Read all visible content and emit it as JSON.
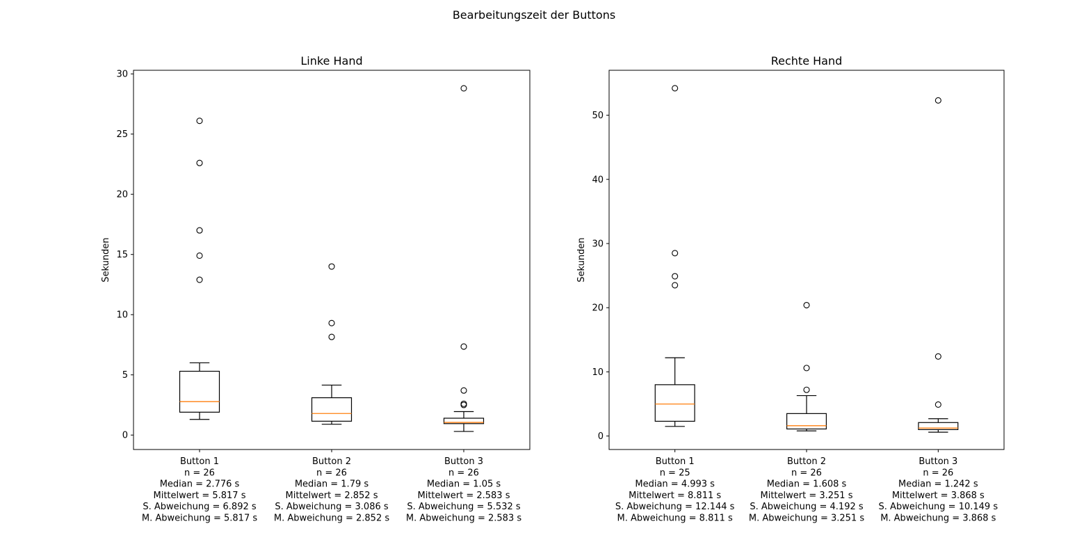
{
  "suptitle": "Bearbeitungszeit der Buttons",
  "colors": {
    "median": "#ff7f0e",
    "box": "#000000",
    "background": "#ffffff"
  },
  "chart_data": [
    {
      "type": "boxplot",
      "title": "Linke Hand",
      "ylabel": "Sekunden",
      "xlabel": "",
      "ylim": [
        -1.2,
        30.3
      ],
      "yticks": [
        0,
        5,
        10,
        15,
        20,
        25,
        30
      ],
      "grid": false,
      "boxes": [
        {
          "label_lines": [
            "Button 1",
            "n = 26",
            "Median = 2.776 s",
            "Mittelwert = 5.817 s",
            "S. Abweichung = 6.892 s",
            "M. Abweichung = 5.817 s"
          ],
          "whisker_low": 1.3,
          "q1": 1.9,
          "median": 2.776,
          "q3": 5.3,
          "whisker_high": 6.0,
          "outliers": [
            12.9,
            14.9,
            17.0,
            22.6,
            26.1
          ]
        },
        {
          "label_lines": [
            "Button 2",
            "n = 26",
            "Median = 1.79 s",
            "Mittelwert = 2.852 s",
            "S. Abweichung = 3.086 s",
            "M. Abweichung = 2.852 s"
          ],
          "whisker_low": 0.9,
          "q1": 1.15,
          "median": 1.79,
          "q3": 3.1,
          "whisker_high": 4.15,
          "outliers": [
            8.15,
            9.3,
            14.0
          ]
        },
        {
          "label_lines": [
            "Button 3",
            "n = 26",
            "Median = 1.05 s",
            "Mittelwert = 2.583 s",
            "S. Abweichung = 5.532 s",
            "M. Abweichung = 2.583 s"
          ],
          "whisker_low": 0.3,
          "q1": 0.95,
          "median": 1.05,
          "q3": 1.4,
          "whisker_high": 1.95,
          "outliers": [
            2.5,
            2.6,
            3.7,
            7.35,
            28.8
          ]
        }
      ]
    },
    {
      "type": "boxplot",
      "title": "Rechte Hand",
      "ylabel": "Sekunden",
      "xlabel": "",
      "ylim": [
        -2.1,
        57.0
      ],
      "yticks": [
        0,
        10,
        20,
        30,
        40,
        50
      ],
      "grid": false,
      "boxes": [
        {
          "label_lines": [
            "Button 1",
            "n = 25",
            "Median = 4.993 s",
            "Mittelwert = 8.811 s",
            "S. Abweichung = 12.144 s",
            "M. Abweichung = 8.811 s"
          ],
          "whisker_low": 1.5,
          "q1": 2.3,
          "median": 4.993,
          "q3": 8.0,
          "whisker_high": 12.2,
          "outliers": [
            23.5,
            24.9,
            28.5,
            54.2
          ]
        },
        {
          "label_lines": [
            "Button 2",
            "n = 26",
            "Median = 1.608 s",
            "Mittelwert = 3.251 s",
            "S. Abweichung = 4.192 s",
            "M. Abweichung = 3.251 s"
          ],
          "whisker_low": 0.8,
          "q1": 1.1,
          "median": 1.608,
          "q3": 3.5,
          "whisker_high": 6.3,
          "outliers": [
            7.2,
            10.6,
            20.4
          ]
        },
        {
          "label_lines": [
            "Button 3",
            "n = 26",
            "Median = 1.242 s",
            "Mittelwert = 3.868 s",
            "S. Abweichung = 10.149 s",
            "M. Abweichung = 3.868 s"
          ],
          "whisker_low": 0.6,
          "q1": 1.0,
          "median": 1.242,
          "q3": 2.1,
          "whisker_high": 2.7,
          "outliers": [
            4.9,
            12.4,
            52.3
          ]
        }
      ]
    }
  ]
}
